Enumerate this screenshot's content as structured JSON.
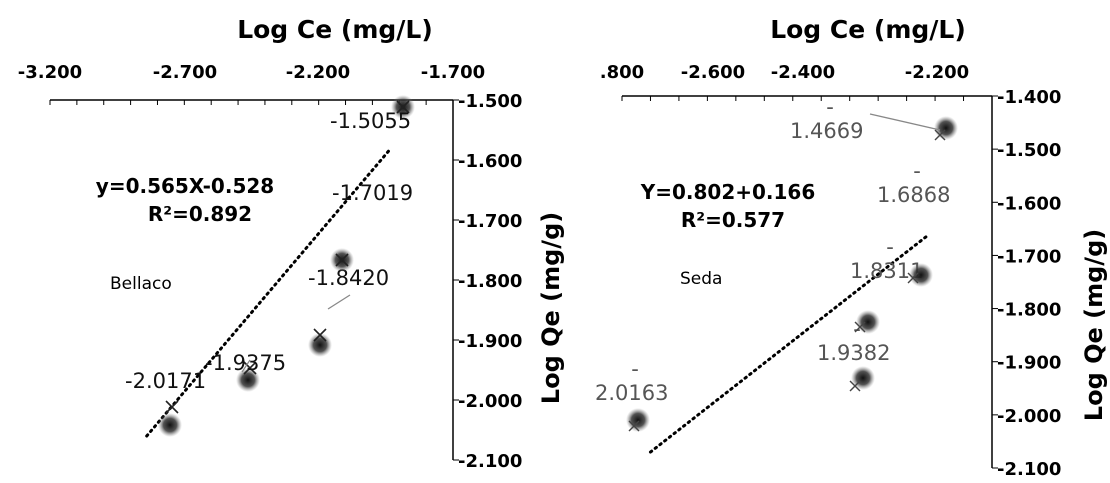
{
  "chart_data": [
    {
      "type": "scatter",
      "panel_name": "Bellaco",
      "title": "Log Ce (mg/L)",
      "ylabel": "Log Qe (mg/g)",
      "x_ticks": [
        "-3.200",
        "-2.700",
        "-2.200",
        "-1.700"
      ],
      "y_ticks": [
        "-1.500",
        "-1.600",
        "-1.700",
        "-1.800",
        "-1.900",
        "-2.000",
        "-2.100"
      ],
      "xlim": [
        -3.2,
        -1.7
      ],
      "ylim": [
        -2.1,
        -1.5
      ],
      "equation": "y=0.565X-0.528",
      "r2": "R²=0.892",
      "trendline": {
        "x": [
          -2.84,
          -1.93
        ],
        "y": [
          -2.06,
          -1.58
        ]
      },
      "points": [
        {
          "x": -2.81,
          "y": -2.03,
          "label": "-2.0171"
        },
        {
          "x": -2.52,
          "y": -1.94,
          "label": "-1.9375"
        },
        {
          "x": -2.24,
          "y": -1.85,
          "label": "-1.8420"
        },
        {
          "x": -2.17,
          "y": -1.71,
          "label": "-1.7019"
        },
        {
          "x": -1.8,
          "y": -1.5,
          "label": "-1.5055"
        }
      ]
    },
    {
      "type": "scatter",
      "panel_name": "Seda",
      "title": "Log Ce (mg/L)",
      "ylabel": "Log Qe (mg/g)",
      "x_ticks": [
        ".800",
        "-2.600",
        "-2.400",
        "-2.200"
      ],
      "y_ticks": [
        "-1.400",
        "-1.500",
        "-1.600",
        "-1.700",
        "-1.800",
        "-1.900",
        "-2.000",
        "-2.100"
      ],
      "xlim": [
        -2.8,
        -2.15
      ],
      "ylim": [
        -2.1,
        -1.4
      ],
      "equation": "Y=0.802+0.166",
      "r2": "R²=0.577",
      "trendline": {
        "x": [
          -2.75,
          -2.26
        ],
        "y": [
          -2.07,
          -1.66
        ]
      },
      "points": [
        {
          "x": -2.69,
          "y": -2.005,
          "label_top": "-",
          "label": "2.0163"
        },
        {
          "x": -2.35,
          "y": -1.93,
          "label_top": "-",
          "label": "1.9382"
        },
        {
          "x": -2.31,
          "y": -1.815,
          "label_top": "-",
          "label": "1.8311"
        },
        {
          "x": -2.26,
          "y": -1.675,
          "label_top": "-",
          "label": "1.6868"
        },
        {
          "x": -2.2,
          "y": -1.455,
          "label_top": "-",
          "label": "1.4669"
        }
      ]
    }
  ]
}
